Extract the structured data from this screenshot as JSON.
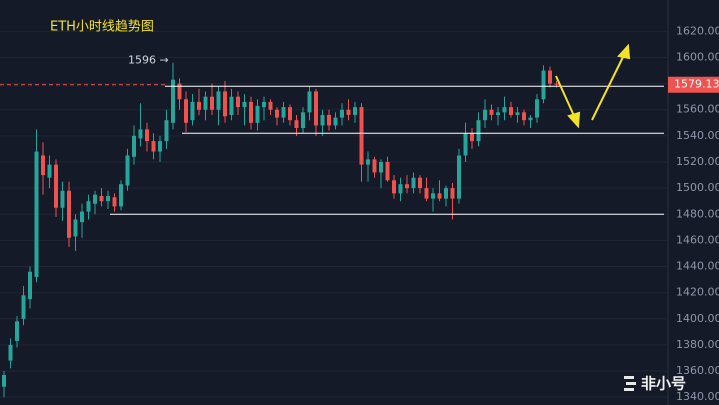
{
  "chart_data": {
    "type": "candlestick",
    "title": "ETH小时线趋势图",
    "open": [
      1348,
      1368,
      1383,
      1400,
      1415,
      1432,
      1525,
      1508,
      1518,
      1485,
      1498,
      1463,
      1474,
      1482,
      1488,
      1494,
      1490,
      1493,
      1486,
      1502,
      1524,
      1538,
      1545,
      1536,
      1528,
      1536,
      1550,
      1580,
      1568,
      1552,
      1566,
      1560,
      1570,
      1560,
      1574,
      1556,
      1570,
      1562,
      1566,
      1550,
      1562,
      1566,
      1560,
      1554,
      1562,
      1552,
      1546,
      1558,
      1574,
      1548,
      1556,
      1548,
      1554,
      1560,
      1556,
      1562,
      1518,
      1522,
      1512,
      1520,
      1506,
      1496,
      1503,
      1500,
      1508,
      1500,
      1492,
      1496,
      1492,
      1500,
      1492,
      1525,
      1542,
      1536,
      1552,
      1560,
      1556,
      1558,
      1562,
      1556,
      1558,
      1552,
      1554,
      1568,
      1590,
      1580
    ],
    "high": [
      1360,
      1385,
      1402,
      1425,
      1440,
      1545,
      1535,
      1525,
      1522,
      1505,
      1505,
      1480,
      1488,
      1495,
      1498,
      1500,
      1498,
      1496,
      1506,
      1530,
      1548,
      1565,
      1550,
      1542,
      1540,
      1560,
      1596,
      1584,
      1574,
      1572,
      1576,
      1574,
      1580,
      1578,
      1582,
      1576,
      1574,
      1572,
      1570,
      1568,
      1570,
      1568,
      1562,
      1566,
      1564,
      1556,
      1562,
      1578,
      1576,
      1560,
      1560,
      1558,
      1565,
      1568,
      1566,
      1565,
      1528,
      1524,
      1522,
      1524,
      1510,
      1508,
      1510,
      1512,
      1510,
      1508,
      1500,
      1506,
      1502,
      1504,
      1530,
      1550,
      1546,
      1558,
      1568,
      1564,
      1562,
      1570,
      1566,
      1562,
      1560,
      1556,
      1572,
      1594,
      1593,
      1582
    ],
    "low": [
      1340,
      1362,
      1378,
      1395,
      1408,
      1428,
      1495,
      1500,
      1478,
      1475,
      1455,
      1452,
      1462,
      1476,
      1480,
      1486,
      1484,
      1482,
      1483,
      1498,
      1518,
      1532,
      1528,
      1522,
      1520,
      1530,
      1545,
      1560,
      1543,
      1548,
      1556,
      1552,
      1556,
      1548,
      1550,
      1552,
      1556,
      1548,
      1545,
      1544,
      1552,
      1556,
      1548,
      1550,
      1548,
      1540,
      1542,
      1552,
      1540,
      1540,
      1544,
      1545,
      1548,
      1552,
      1550,
      1505,
      1505,
      1508,
      1500,
      1505,
      1492,
      1490,
      1496,
      1496,
      1496,
      1490,
      1482,
      1490,
      1486,
      1476,
      1488,
      1520,
      1530,
      1532,
      1546,
      1552,
      1548,
      1552,
      1554,
      1550,
      1548,
      1546,
      1550,
      1565,
      1577,
      1577
    ],
    "close": [
      1357,
      1380,
      1398,
      1418,
      1436,
      1528,
      1510,
      1518,
      1485,
      1498,
      1462,
      1476,
      1482,
      1490,
      1495,
      1490,
      1494,
      1486,
      1503,
      1525,
      1540,
      1545,
      1536,
      1528,
      1536,
      1552,
      1583,
      1568,
      1550,
      1566,
      1560,
      1570,
      1560,
      1574,
      1555,
      1570,
      1562,
      1566,
      1550,
      1563,
      1566,
      1560,
      1554,
      1562,
      1552,
      1546,
      1558,
      1574,
      1548,
      1556,
      1548,
      1554,
      1560,
      1556,
      1562,
      1518,
      1522,
      1512,
      1520,
      1506,
      1496,
      1503,
      1500,
      1508,
      1500,
      1492,
      1496,
      1492,
      1500,
      1492,
      1525,
      1542,
      1536,
      1552,
      1560,
      1556,
      1558,
      1562,
      1556,
      1558,
      1552,
      1554,
      1568,
      1590,
      1580,
      1579.13
    ],
    "up_color": "#26a69a",
    "down_color": "#ef5350",
    "levels": [
      1578,
      1542,
      1480
    ],
    "last_price": 1579.13,
    "annotation": "1596 →",
    "ylim": [
      1334,
      1644
    ],
    "yticks": [
      {
        "value": 1340,
        "label": "1340.00"
      },
      {
        "value": 1360,
        "label": "1360.00"
      },
      {
        "value": 1380,
        "label": "1380.00"
      },
      {
        "value": 1400,
        "label": "1400.00"
      },
      {
        "value": 1420,
        "label": "1420.00"
      },
      {
        "value": 1440,
        "label": "1440.00"
      },
      {
        "value": 1460,
        "label": "1460.00"
      },
      {
        "value": 1480,
        "label": "1480.00"
      },
      {
        "value": 1500,
        "label": "1500.00"
      },
      {
        "value": 1520,
        "label": "1520.00"
      },
      {
        "value": 1540,
        "label": "1540.00"
      },
      {
        "value": 1560,
        "label": "1560.00"
      },
      {
        "value": 1580,
        "label": "1580.00"
      },
      {
        "value": 1600,
        "label": "1600.00"
      },
      {
        "value": 1620,
        "label": "1620.00"
      }
    ],
    "grid": true,
    "watermark": "非小号"
  }
}
